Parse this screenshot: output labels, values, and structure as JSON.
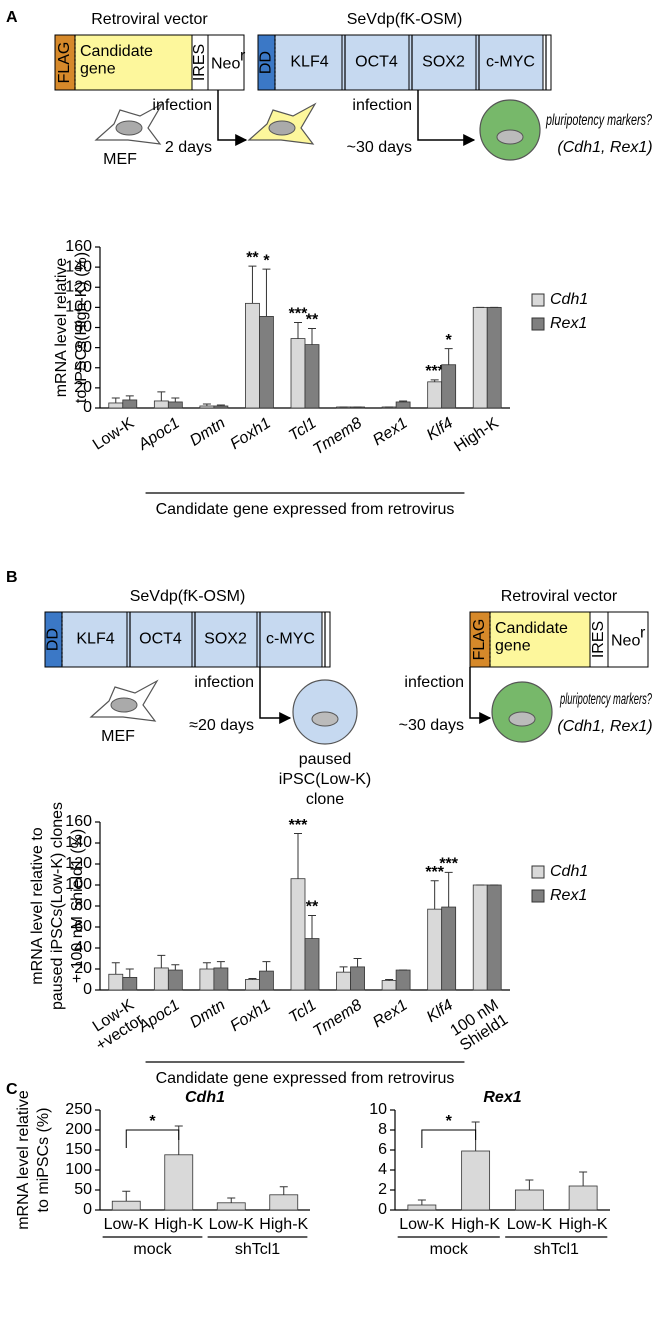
{
  "panels": {
    "a": "A",
    "b": "B",
    "c": "C"
  },
  "diagram_a": {
    "vector": {
      "title": "Retroviral vector",
      "flag": "FLAG",
      "gene": "Candidate\ngene",
      "ires": "IRES",
      "neo": "Neo",
      "neo_sup": "r"
    },
    "sevdp": {
      "title": "SeVdp(fK-OSM)",
      "dd": "DD",
      "factors": [
        "KLF4",
        "OCT4",
        "SOX2",
        "c-MYC"
      ]
    },
    "cell_start": "MEF",
    "step1": {
      "label": "infection",
      "time": "2 days"
    },
    "step2": {
      "label": "infection",
      "time": "~30 days"
    },
    "readout": [
      "pluripotency markers?",
      "(Cdh1, Rex1)"
    ]
  },
  "diagram_b": {
    "sevdp": {
      "title": "SeVdp(fK-OSM)",
      "dd": "DD",
      "factors": [
        "KLF4",
        "OCT4",
        "SOX2",
        "c-MYC"
      ]
    },
    "vector": {
      "title": "Retroviral vector",
      "flag": "FLAG",
      "gene": "Candidate\ngene",
      "ires": "IRES",
      "neo": "Neo",
      "neo_sup": "r"
    },
    "cell_start": "MEF",
    "step1": {
      "label": "infection",
      "time": "≈20 days"
    },
    "paused_clone": [
      "paused",
      "iPSC(Low-K)",
      "clone"
    ],
    "step2": {
      "label": "infection",
      "time": "~30 days"
    },
    "readout": [
      "pluripotency markers?",
      "(Cdh1, Rex1)"
    ]
  },
  "chart_data": [
    {
      "type": "bar",
      "ylabel": [
        "mRNA level relative",
        "to iPSCs(High-K) (%)"
      ],
      "xlabel": "Candidate gene expressed from retrovirus",
      "categories": [
        "Low-K",
        "Apoc1",
        "Dmtn",
        "Foxh1",
        "Tcl1",
        "Tmem8",
        "Rex1",
        "Klf4",
        "High-K"
      ],
      "series": [
        {
          "name": "Cdh1",
          "color": "#d9d9d9",
          "values": [
            5,
            7,
            2,
            104,
            69,
            1,
            1,
            26,
            100
          ],
          "errors": [
            5,
            9,
            2,
            37,
            16,
            0,
            0,
            2,
            0
          ],
          "significance": [
            null,
            null,
            null,
            "**",
            "***",
            null,
            null,
            "***",
            null
          ]
        },
        {
          "name": "Rex1",
          "color": "#7f7f7f",
          "values": [
            8,
            6,
            2,
            91,
            63,
            1,
            6,
            43,
            100
          ],
          "errors": [
            4,
            4,
            1,
            47,
            16,
            0,
            1,
            16,
            0
          ],
          "significance": [
            null,
            null,
            null,
            "*",
            "**",
            null,
            null,
            "*",
            null
          ]
        }
      ],
      "ylim": [
        0,
        160
      ],
      "yticks": [
        0,
        20,
        40,
        60,
        80,
        100,
        120,
        140,
        160
      ],
      "legend": "right"
    },
    {
      "type": "bar",
      "ylabel": [
        "mRNA level relative to",
        "paused iPSCs(Low-K) clones",
        "+ 100 nM Shield1 (%)"
      ],
      "xlabel": "Candidate gene expressed from retrovirus",
      "categories": [
        "Low-K\n+vector",
        "Apoc1",
        "Dmtn",
        "Foxh1",
        "Tcl1",
        "Tmem8",
        "Rex1",
        "Klf4",
        "100 nM\nShield1"
      ],
      "series": [
        {
          "name": "Cdh1",
          "color": "#d9d9d9",
          "values": [
            15,
            21,
            20,
            10,
            106,
            17,
            9,
            77,
            100
          ],
          "errors": [
            11,
            12,
            6,
            1,
            43,
            5,
            1,
            27,
            0
          ],
          "significance": [
            null,
            null,
            null,
            null,
            "***",
            null,
            null,
            "***",
            null
          ]
        },
        {
          "name": "Rex1",
          "color": "#7f7f7f",
          "values": [
            12,
            19,
            21,
            18,
            49,
            22,
            19,
            79,
            100
          ],
          "errors": [
            8,
            5,
            6,
            9,
            22,
            8,
            0,
            33,
            0
          ],
          "significance": [
            null,
            null,
            null,
            null,
            "**",
            null,
            null,
            "***",
            null
          ]
        }
      ],
      "ylim": [
        0,
        160
      ],
      "yticks": [
        0,
        20,
        40,
        60,
        80,
        100,
        120,
        140,
        160
      ],
      "legend": "right"
    },
    {
      "type": "bar",
      "title": "Cdh1",
      "ylabel": [
        "mRNA level relative",
        "to miPSCs (%)"
      ],
      "categories": [
        "Low-K",
        "High-K",
        "Low-K",
        "High-K"
      ],
      "groups": [
        "mock",
        "shTcl1"
      ],
      "series": [
        {
          "color": "#d9d9d9",
          "values": [
            22,
            138,
            18,
            38
          ],
          "errors": [
            25,
            72,
            12,
            20
          ]
        }
      ],
      "brackets": [
        {
          "from": 0,
          "to": 1,
          "label": "*"
        }
      ],
      "ylim": [
        0,
        250
      ],
      "yticks": [
        0,
        50,
        100,
        150,
        200,
        250
      ]
    },
    {
      "type": "bar",
      "title": "Rex1",
      "categories": [
        "Low-K",
        "High-K",
        "Low-K",
        "High-K"
      ],
      "groups": [
        "mock",
        "shTcl1"
      ],
      "series": [
        {
          "color": "#d9d9d9",
          "values": [
            0.5,
            5.9,
            2.0,
            2.4
          ],
          "errors": [
            0.5,
            2.9,
            1.0,
            1.4
          ]
        }
      ],
      "brackets": [
        {
          "from": 0,
          "to": 1,
          "label": "*"
        }
      ],
      "ylim": [
        0,
        10
      ],
      "yticks": [
        0,
        2,
        4,
        6,
        8,
        10
      ]
    }
  ]
}
